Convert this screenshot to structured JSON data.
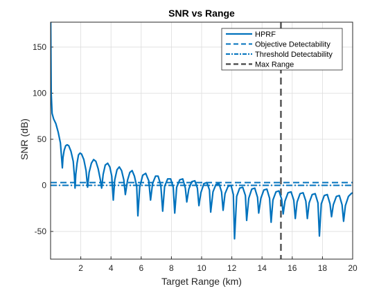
{
  "chart_data": {
    "type": "line",
    "title": "SNR vs Range",
    "xlabel": "Target Range (km)",
    "ylabel": "SNR (dB)",
    "xlim": [
      0,
      20
    ],
    "ylim": [
      -80,
      177
    ],
    "x_ticks": [
      2,
      4,
      6,
      8,
      10,
      12,
      14,
      16,
      18,
      20
    ],
    "y_ticks": [
      -50,
      0,
      50,
      100,
      150
    ],
    "x_tick_labels": [
      "2",
      "4",
      "6",
      "8",
      "10",
      "12",
      "14",
      "16",
      "18",
      "20"
    ],
    "y_tick_labels": [
      "-50",
      "0",
      "50",
      "100",
      "150"
    ],
    "grid": true,
    "legend_position": "top-right",
    "colors": {
      "hprf": "#0072BD",
      "objective": "#0072BD",
      "threshold": "#0072BD",
      "max_range": "#555555",
      "grid": "#dcdcdc",
      "axis": "#262626"
    },
    "series": [
      {
        "name": "HPRF",
        "style": "solid",
        "points": [
          [
            0.01,
            177
          ],
          [
            0.04,
            100
          ],
          [
            0.1,
            78
          ],
          [
            0.2,
            72
          ],
          [
            0.35,
            67
          ],
          [
            0.5,
            58
          ],
          [
            0.65,
            46
          ],
          [
            0.75,
            26
          ],
          [
            0.78,
            19
          ],
          [
            0.82,
            30
          ],
          [
            0.9,
            38
          ],
          [
            1.0,
            43
          ],
          [
            1.1,
            44
          ],
          [
            1.2,
            43
          ],
          [
            1.35,
            37
          ],
          [
            1.5,
            26
          ],
          [
            1.58,
            10
          ],
          [
            1.62,
            -3
          ],
          [
            1.67,
            12
          ],
          [
            1.75,
            24
          ],
          [
            1.85,
            33
          ],
          [
            1.95,
            35
          ],
          [
            2.05,
            34
          ],
          [
            2.2,
            28
          ],
          [
            2.35,
            16
          ],
          [
            2.45,
            -2
          ],
          [
            2.55,
            14
          ],
          [
            2.7,
            24
          ],
          [
            2.85,
            28
          ],
          [
            3.0,
            26
          ],
          [
            3.15,
            18
          ],
          [
            3.3,
            6
          ],
          [
            3.38,
            -3
          ],
          [
            3.48,
            12
          ],
          [
            3.62,
            22
          ],
          [
            3.78,
            24
          ],
          [
            3.92,
            20
          ],
          [
            4.05,
            10
          ],
          [
            4.15,
            -16
          ],
          [
            4.25,
            6
          ],
          [
            4.4,
            17
          ],
          [
            4.55,
            20
          ],
          [
            4.7,
            16
          ],
          [
            4.85,
            6
          ],
          [
            4.95,
            -10
          ],
          [
            5.1,
            6
          ],
          [
            5.25,
            14
          ],
          [
            5.4,
            16
          ],
          [
            5.55,
            10
          ],
          [
            5.7,
            -1
          ],
          [
            5.78,
            -33
          ],
          [
            5.9,
            -2
          ],
          [
            6.1,
            11
          ],
          [
            6.3,
            13
          ],
          [
            6.5,
            5
          ],
          [
            6.62,
            -16
          ],
          [
            6.75,
            2
          ],
          [
            6.95,
            10
          ],
          [
            7.12,
            10
          ],
          [
            7.3,
            0
          ],
          [
            7.42,
            -28
          ],
          [
            7.55,
            -1
          ],
          [
            7.75,
            7
          ],
          [
            7.95,
            7
          ],
          [
            8.12,
            -2
          ],
          [
            8.22,
            -30
          ],
          [
            8.35,
            -2
          ],
          [
            8.55,
            6
          ],
          [
            8.75,
            7
          ],
          [
            8.92,
            -3
          ],
          [
            9.02,
            -18
          ],
          [
            9.15,
            -4
          ],
          [
            9.35,
            4
          ],
          [
            9.55,
            5
          ],
          [
            9.72,
            -3
          ],
          [
            9.82,
            -22
          ],
          [
            9.95,
            -8
          ],
          [
            10.15,
            2
          ],
          [
            10.35,
            3
          ],
          [
            10.52,
            -5
          ],
          [
            10.6,
            -29
          ],
          [
            10.75,
            -7
          ],
          [
            10.95,
            1
          ],
          [
            11.15,
            2
          ],
          [
            11.32,
            -7
          ],
          [
            11.42,
            -27
          ],
          [
            11.55,
            -9
          ],
          [
            11.75,
            -1
          ],
          [
            11.95,
            0
          ],
          [
            12.1,
            -10
          ],
          [
            12.18,
            -58
          ],
          [
            12.32,
            -12
          ],
          [
            12.52,
            -3
          ],
          [
            12.72,
            -2
          ],
          [
            12.9,
            -11
          ],
          [
            12.98,
            -38
          ],
          [
            13.12,
            -14
          ],
          [
            13.32,
            -4
          ],
          [
            13.52,
            -3
          ],
          [
            13.7,
            -13
          ],
          [
            13.78,
            -30
          ],
          [
            13.92,
            -14
          ],
          [
            14.12,
            -5
          ],
          [
            14.32,
            -4
          ],
          [
            14.5,
            -14
          ],
          [
            14.6,
            -40
          ],
          [
            14.72,
            -16
          ],
          [
            14.92,
            -7
          ],
          [
            15.12,
            -6
          ],
          [
            15.3,
            -15
          ],
          [
            15.4,
            -31
          ],
          [
            15.52,
            -17
          ],
          [
            15.72,
            -8
          ],
          [
            15.92,
            -7
          ],
          [
            16.1,
            -16
          ],
          [
            16.2,
            -36
          ],
          [
            16.32,
            -18
          ],
          [
            16.52,
            -9
          ],
          [
            16.72,
            -8
          ],
          [
            16.9,
            -17
          ],
          [
            17.0,
            -36
          ],
          [
            17.12,
            -19
          ],
          [
            17.32,
            -10
          ],
          [
            17.52,
            -9
          ],
          [
            17.7,
            -19
          ],
          [
            17.8,
            -55
          ],
          [
            17.92,
            -20
          ],
          [
            18.12,
            -11
          ],
          [
            18.32,
            -10
          ],
          [
            18.5,
            -20
          ],
          [
            18.6,
            -34
          ],
          [
            18.72,
            -21
          ],
          [
            18.92,
            -12
          ],
          [
            19.12,
            -11
          ],
          [
            19.3,
            -21
          ],
          [
            19.4,
            -39
          ],
          [
            19.52,
            -22
          ],
          [
            19.72,
            -12
          ],
          [
            19.9,
            -9
          ],
          [
            20.0,
            -8
          ]
        ]
      },
      {
        "name": "Objective Detectability",
        "style": "dashed",
        "y": 3
      },
      {
        "name": "Threshold Detectability",
        "style": "dash-dot",
        "y": 0
      },
      {
        "name": "Max Range",
        "style": "dashed",
        "x": 15.25
      }
    ]
  }
}
